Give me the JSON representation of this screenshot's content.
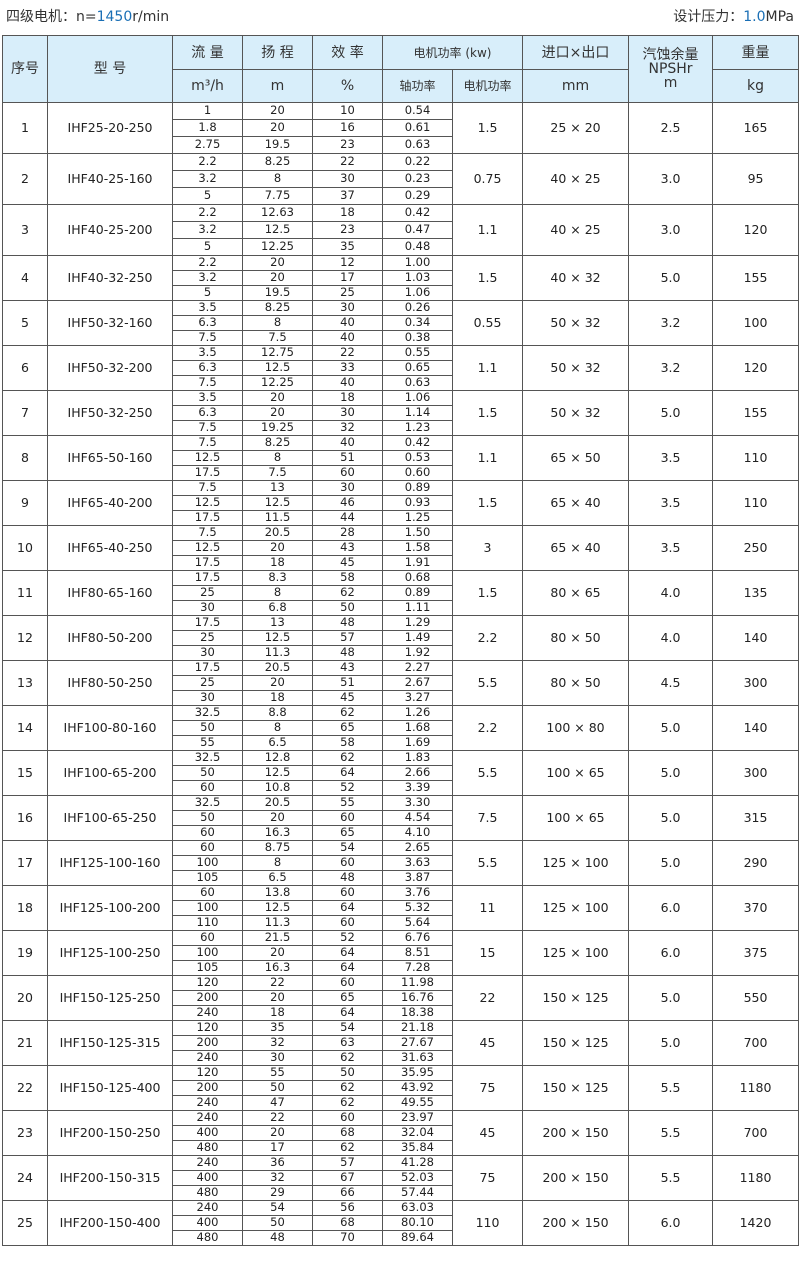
{
  "header_left": {
    "prefix": "四级电机：n=",
    "speed": "1450",
    "unit": "r/min"
  },
  "header_right": {
    "prefix": "设计压力：",
    "pressure": "1.0",
    "unit": "MPa"
  },
  "columns": {
    "no": "序号",
    "model": "型 号",
    "flow": "流 量",
    "flow_unit": "m³/h",
    "head": "扬 程",
    "head_unit": "m",
    "eff": "效 率",
    "eff_unit": "%",
    "power": "电机功率 (kw)",
    "shaft": "轴功率",
    "motor": "电机功率",
    "port": "进口×出口",
    "port_unit": "mm",
    "npsh": "汽蚀余量",
    "npsh2": "NPSHr",
    "npsh_unit": "m",
    "weight": "重量",
    "weight_unit": "kg"
  },
  "rows": [
    {
      "no": "1",
      "model": "IHF25-20-250",
      "flow": [
        "1",
        "1.8",
        "2.75"
      ],
      "head": [
        "20",
        "20",
        "19.5"
      ],
      "eff": [
        "10",
        "16",
        "23"
      ],
      "shaft": [
        "0.54",
        "0.61",
        "0.63"
      ],
      "motor": "1.5",
      "port": "25 × 20",
      "npsh": "2.5",
      "weight": "165"
    },
    {
      "no": "2",
      "model": "IHF40-25-160",
      "flow": [
        "2.2",
        "3.2",
        "5"
      ],
      "head": [
        "8.25",
        "8",
        "7.75"
      ],
      "eff": [
        "22",
        "30",
        "37"
      ],
      "shaft": [
        "0.22",
        "0.23",
        "0.29"
      ],
      "motor": "0.75",
      "port": "40 × 25",
      "npsh": "3.0",
      "weight": "95"
    },
    {
      "no": "3",
      "model": "IHF40-25-200",
      "flow": [
        "2.2",
        "3.2",
        "5"
      ],
      "head": [
        "12.63",
        "12.5",
        "12.25"
      ],
      "eff": [
        "18",
        "23",
        "35"
      ],
      "shaft": [
        "0.42",
        "0.47",
        "0.48"
      ],
      "motor": "1.1",
      "port": "40 × 25",
      "npsh": "3.0",
      "weight": "120"
    },
    {
      "no": "4",
      "model": "IHF40-32-250",
      "flow": [
        "2.2",
        "3.2",
        "5"
      ],
      "head": [
        "20",
        "20",
        "19.5"
      ],
      "eff": [
        "12",
        "17",
        "25"
      ],
      "shaft": [
        "1.00",
        "1.03",
        "1.06"
      ],
      "motor": "1.5",
      "port": "40 × 32",
      "npsh": "5.0",
      "weight": "155"
    },
    {
      "no": "5",
      "model": "IHF50-32-160",
      "flow": [
        "3.5",
        "6.3",
        "7.5"
      ],
      "head": [
        "8.25",
        "8",
        "7.5"
      ],
      "eff": [
        "30",
        "40",
        "40"
      ],
      "shaft": [
        "0.26",
        "0.34",
        "0.38"
      ],
      "motor": "0.55",
      "port": "50 × 32",
      "npsh": "3.2",
      "weight": "100"
    },
    {
      "no": "6",
      "model": "IHF50-32-200",
      "flow": [
        "3.5",
        "6.3",
        "7.5"
      ],
      "head": [
        "12.75",
        "12.5",
        "12.25"
      ],
      "eff": [
        "22",
        "33",
        "40"
      ],
      "shaft": [
        "0.55",
        "0.65",
        "0.63"
      ],
      "motor": "1.1",
      "port": "50 × 32",
      "npsh": "3.2",
      "weight": "120"
    },
    {
      "no": "7",
      "model": "IHF50-32-250",
      "flow": [
        "3.5",
        "6.3",
        "7.5"
      ],
      "head": [
        "20",
        "20",
        "19.25"
      ],
      "eff": [
        "18",
        "30",
        "32"
      ],
      "shaft": [
        "1.06",
        "1.14",
        "1.23"
      ],
      "motor": "1.5",
      "port": "50 × 32",
      "npsh": "5.0",
      "weight": "155"
    },
    {
      "no": "8",
      "model": "IHF65-50-160",
      "flow": [
        "7.5",
        "12.5",
        "17.5"
      ],
      "head": [
        "8.25",
        "8",
        "7.5"
      ],
      "eff": [
        "40",
        "51",
        "60"
      ],
      "shaft": [
        "0.42",
        "0.53",
        "0.60"
      ],
      "motor": "1.1",
      "port": "65 × 50",
      "npsh": "3.5",
      "weight": "110"
    },
    {
      "no": "9",
      "model": "IHF65-40-200",
      "flow": [
        "7.5",
        "12.5",
        "17.5"
      ],
      "head": [
        "13",
        "12.5",
        "11.5"
      ],
      "eff": [
        "30",
        "46",
        "44"
      ],
      "shaft": [
        "0.89",
        "0.93",
        "1.25"
      ],
      "motor": "1.5",
      "port": "65 × 40",
      "npsh": "3.5",
      "weight": "110"
    },
    {
      "no": "10",
      "model": "IHF65-40-250",
      "flow": [
        "7.5",
        "12.5",
        "17.5"
      ],
      "head": [
        "20.5",
        "20",
        "18"
      ],
      "eff": [
        "28",
        "43",
        "45"
      ],
      "shaft": [
        "1.50",
        "1.58",
        "1.91"
      ],
      "motor": "3",
      "port": "65 × 40",
      "npsh": "3.5",
      "weight": "250"
    },
    {
      "no": "11",
      "model": "IHF80-65-160",
      "flow": [
        "17.5",
        "25",
        "30"
      ],
      "head": [
        "8.3",
        "8",
        "6.8"
      ],
      "eff": [
        "58",
        "62",
        "50"
      ],
      "shaft": [
        "0.68",
        "0.89",
        "1.11"
      ],
      "motor": "1.5",
      "port": "80 × 65",
      "npsh": "4.0",
      "weight": "135"
    },
    {
      "no": "12",
      "model": "IHF80-50-200",
      "flow": [
        "17.5",
        "25",
        "30"
      ],
      "head": [
        "13",
        "12.5",
        "11.3"
      ],
      "eff": [
        "48",
        "57",
        "48"
      ],
      "shaft": [
        "1.29",
        "1.49",
        "1.92"
      ],
      "motor": "2.2",
      "port": "80 × 50",
      "npsh": "4.0",
      "weight": "140"
    },
    {
      "no": "13",
      "model": "IHF80-50-250",
      "flow": [
        "17.5",
        "25",
        "30"
      ],
      "head": [
        "20.5",
        "20",
        "18"
      ],
      "eff": [
        "43",
        "51",
        "45"
      ],
      "shaft": [
        "2.27",
        "2.67",
        "3.27"
      ],
      "motor": "5.5",
      "port": "80 × 50",
      "npsh": "4.5",
      "weight": "300"
    },
    {
      "no": "14",
      "model": "IHF100-80-160",
      "flow": [
        "32.5",
        "50",
        "55"
      ],
      "head": [
        "8.8",
        "8",
        "6.5"
      ],
      "eff": [
        "62",
        "65",
        "58"
      ],
      "shaft": [
        "1.26",
        "1.68",
        "1.69"
      ],
      "motor": "2.2",
      "port": "100 × 80",
      "npsh": "5.0",
      "weight": "140"
    },
    {
      "no": "15",
      "model": "IHF100-65-200",
      "flow": [
        "32.5",
        "50",
        "60"
      ],
      "head": [
        "12.8",
        "12.5",
        "10.8"
      ],
      "eff": [
        "62",
        "64",
        "52"
      ],
      "shaft": [
        "1.83",
        "2.66",
        "3.39"
      ],
      "motor": "5.5",
      "port": "100 × 65",
      "npsh": "5.0",
      "weight": "300"
    },
    {
      "no": "16",
      "model": "IHF100-65-250",
      "flow": [
        "32.5",
        "50",
        "60"
      ],
      "head": [
        "20.5",
        "20",
        "16.3"
      ],
      "eff": [
        "55",
        "60",
        "65"
      ],
      "shaft": [
        "3.30",
        "4.54",
        "4.10"
      ],
      "motor": "7.5",
      "port": "100 × 65",
      "npsh": "5.0",
      "weight": "315"
    },
    {
      "no": "17",
      "model": "IHF125-100-160",
      "flow": [
        "60",
        "100",
        "105"
      ],
      "head": [
        "8.75",
        "8",
        "6.5"
      ],
      "eff": [
        "54",
        "60",
        "48"
      ],
      "shaft": [
        "2.65",
        "3.63",
        "3.87"
      ],
      "motor": "5.5",
      "port": "125 × 100",
      "npsh": "5.0",
      "weight": "290"
    },
    {
      "no": "18",
      "model": "IHF125-100-200",
      "flow": [
        "60",
        "100",
        "110"
      ],
      "head": [
        "13.8",
        "12.5",
        "11.3"
      ],
      "eff": [
        "60",
        "64",
        "60"
      ],
      "shaft": [
        "3.76",
        "5.32",
        "5.64"
      ],
      "motor": "11",
      "port": "125 × 100",
      "npsh": "6.0",
      "weight": "370"
    },
    {
      "no": "19",
      "model": "IHF125-100-250",
      "flow": [
        "60",
        "100",
        "105"
      ],
      "head": [
        "21.5",
        "20",
        "16.3"
      ],
      "eff": [
        "52",
        "64",
        "64"
      ],
      "shaft": [
        "6.76",
        "8.51",
        "7.28"
      ],
      "motor": "15",
      "port": "125 × 100",
      "npsh": "6.0",
      "weight": "375"
    },
    {
      "no": "20",
      "model": "IHF150-125-250",
      "flow": [
        "120",
        "200",
        "240"
      ],
      "head": [
        "22",
        "20",
        "18"
      ],
      "eff": [
        "60",
        "65",
        "64"
      ],
      "shaft": [
        "11.98",
        "16.76",
        "18.38"
      ],
      "motor": "22",
      "port": "150 × 125",
      "npsh": "5.0",
      "weight": "550"
    },
    {
      "no": "21",
      "model": "IHF150-125-315",
      "flow": [
        "120",
        "200",
        "240"
      ],
      "head": [
        "35",
        "32",
        "30"
      ],
      "eff": [
        "54",
        "63",
        "62"
      ],
      "shaft": [
        "21.18",
        "27.67",
        "31.63"
      ],
      "motor": "45",
      "port": "150 × 125",
      "npsh": "5.0",
      "weight": "700"
    },
    {
      "no": "22",
      "model": "IHF150-125-400",
      "flow": [
        "120",
        "200",
        "240"
      ],
      "head": [
        "55",
        "50",
        "47"
      ],
      "eff": [
        "50",
        "62",
        "62"
      ],
      "shaft": [
        "35.95",
        "43.92",
        "49.55"
      ],
      "motor": "75",
      "port": "150 × 125",
      "npsh": "5.5",
      "weight": "1180"
    },
    {
      "no": "23",
      "model": "IHF200-150-250",
      "flow": [
        "240",
        "400",
        "480"
      ],
      "head": [
        "22",
        "20",
        "17"
      ],
      "eff": [
        "60",
        "68",
        "62"
      ],
      "shaft": [
        "23.97",
        "32.04",
        "35.84"
      ],
      "motor": "45",
      "port": "200 × 150",
      "npsh": "5.5",
      "weight": "700"
    },
    {
      "no": "24",
      "model": "IHF200-150-315",
      "flow": [
        "240",
        "400",
        "480"
      ],
      "head": [
        "36",
        "32",
        "29"
      ],
      "eff": [
        "57",
        "67",
        "66"
      ],
      "shaft": [
        "41.28",
        "52.03",
        "57.44"
      ],
      "motor": "75",
      "port": "200 × 150",
      "npsh": "5.5",
      "weight": "1180"
    },
    {
      "no": "25",
      "model": "IHF200-150-400",
      "flow": [
        "240",
        "400",
        "480"
      ],
      "head": [
        "54",
        "50",
        "48"
      ],
      "eff": [
        "56",
        "68",
        "70"
      ],
      "shaft": [
        "63.03",
        "80.10",
        "89.64"
      ],
      "motor": "110",
      "port": "200 × 150",
      "npsh": "6.0",
      "weight": "1420"
    }
  ],
  "colors": {
    "accent": "#1a6fb5",
    "header_bg": "#d8eefa",
    "border": "#555555"
  }
}
